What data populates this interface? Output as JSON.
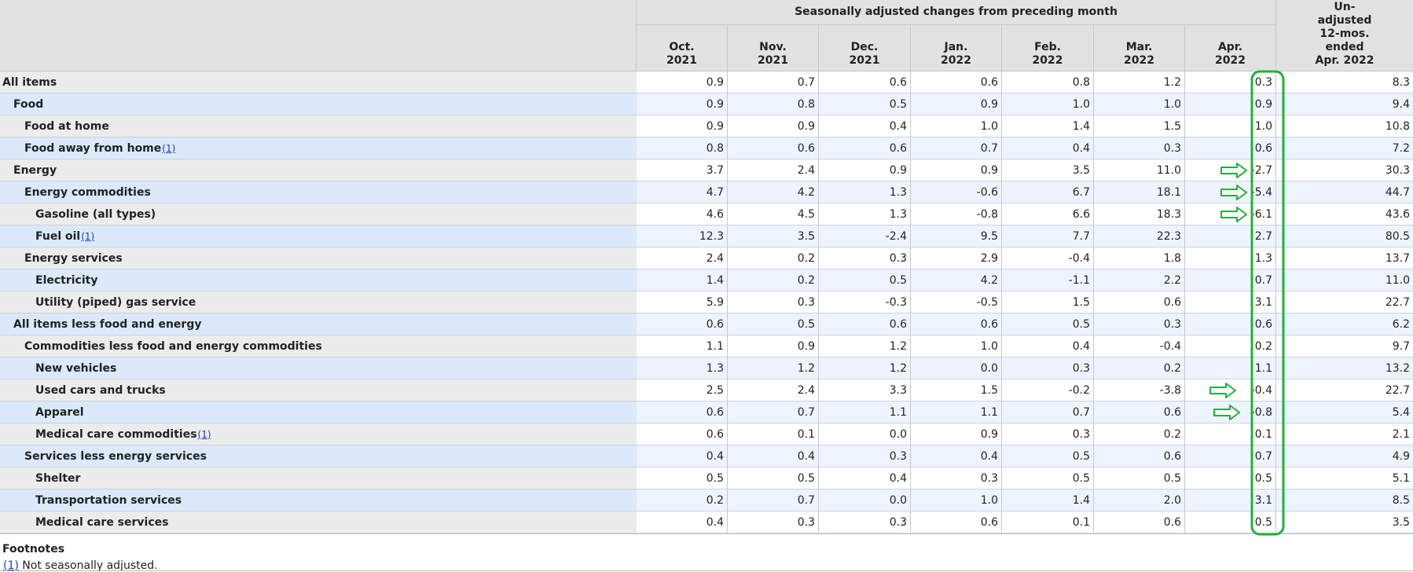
{
  "table": {
    "group_header": "Seasonally adjusted changes from preceding month",
    "columns": [
      [
        "Oct.",
        "2021"
      ],
      [
        "Nov.",
        "2021"
      ],
      [
        "Dec.",
        "2021"
      ],
      [
        "Jan.",
        "2022"
      ],
      [
        "Feb.",
        "2022"
      ],
      [
        "Mar.",
        "2022"
      ],
      [
        "Apr.",
        "2022"
      ],
      [
        "Un-",
        "adjusted",
        "12-mos.",
        "ended",
        "Apr. 2022"
      ]
    ],
    "rows": [
      {
        "label": "All items",
        "values": [
          "0.9",
          "0.7",
          "0.6",
          "0.6",
          "0.8",
          "1.2",
          "0.3",
          "8.3"
        ]
      },
      {
        "label": "Food",
        "values": [
          "0.9",
          "0.8",
          "0.5",
          "0.9",
          "1.0",
          "1.0",
          "0.9",
          "9.4"
        ]
      },
      {
        "label": "Food at home",
        "values": [
          "0.9",
          "0.9",
          "0.4",
          "1.0",
          "1.4",
          "1.5",
          "1.0",
          "10.8"
        ]
      },
      {
        "label": "Food away from home",
        "note": "(1)",
        "values": [
          "0.8",
          "0.6",
          "0.6",
          "0.7",
          "0.4",
          "0.3",
          "0.6",
          "7.2"
        ]
      },
      {
        "label": "Energy",
        "values": [
          "3.7",
          "2.4",
          "0.9",
          "0.9",
          "3.5",
          "11.0",
          "-2.7",
          "30.3"
        ]
      },
      {
        "label": "Energy commodities",
        "values": [
          "4.7",
          "4.2",
          "1.3",
          "-0.6",
          "6.7",
          "18.1",
          "-5.4",
          "44.7"
        ]
      },
      {
        "label": "Gasoline (all types)",
        "values": [
          "4.6",
          "4.5",
          "1.3",
          "-0.8",
          "6.6",
          "18.3",
          "-6.1",
          "43.6"
        ]
      },
      {
        "label": "Fuel oil",
        "note": "(1)",
        "values": [
          "12.3",
          "3.5",
          "-2.4",
          "9.5",
          "7.7",
          "22.3",
          "2.7",
          "80.5"
        ]
      },
      {
        "label": "Energy services",
        "values": [
          "2.4",
          "0.2",
          "0.3",
          "2.9",
          "-0.4",
          "1.8",
          "1.3",
          "13.7"
        ]
      },
      {
        "label": "Electricity",
        "values": [
          "1.4",
          "0.2",
          "0.5",
          "4.2",
          "-1.1",
          "2.2",
          "0.7",
          "11.0"
        ]
      },
      {
        "label": "Utility (piped) gas service",
        "values": [
          "5.9",
          "0.3",
          "-0.3",
          "-0.5",
          "1.5",
          "0.6",
          "3.1",
          "22.7"
        ]
      },
      {
        "label": "All items less food and energy",
        "values": [
          "0.6",
          "0.5",
          "0.6",
          "0.6",
          "0.5",
          "0.3",
          "0.6",
          "6.2"
        ]
      },
      {
        "label": "Commodities less food and energy commodities",
        "values": [
          "1.1",
          "0.9",
          "1.2",
          "1.0",
          "0.4",
          "-0.4",
          "0.2",
          "9.7"
        ]
      },
      {
        "label": "New vehicles",
        "values": [
          "1.3",
          "1.2",
          "1.2",
          "0.0",
          "0.3",
          "0.2",
          "1.1",
          "13.2"
        ]
      },
      {
        "label": "Used cars and trucks",
        "values": [
          "2.5",
          "2.4",
          "3.3",
          "1.5",
          "-0.2",
          "-3.8",
          "-0.4",
          "22.7"
        ]
      },
      {
        "label": "Apparel",
        "values": [
          "0.6",
          "0.7",
          "1.1",
          "1.1",
          "0.7",
          "0.6",
          "-0.8",
          "5.4"
        ]
      },
      {
        "label": "Medical care commodities",
        "note": "(1)",
        "values": [
          "0.6",
          "0.1",
          "0.0",
          "0.9",
          "0.3",
          "0.2",
          "0.1",
          "2.1"
        ]
      },
      {
        "label": "Services less energy services",
        "values": [
          "0.4",
          "0.4",
          "0.3",
          "0.4",
          "0.5",
          "0.6",
          "0.7",
          "4.9"
        ]
      },
      {
        "label": "Shelter",
        "values": [
          "0.5",
          "0.5",
          "0.4",
          "0.3",
          "0.5",
          "0.5",
          "0.5",
          "5.1"
        ]
      },
      {
        "label": "Transportation services",
        "values": [
          "0.2",
          "0.7",
          "0.0",
          "1.0",
          "1.4",
          "2.0",
          "3.1",
          "8.5"
        ]
      },
      {
        "label": "Medical care services",
        "values": [
          "0.4",
          "0.3",
          "0.3",
          "0.6",
          "0.1",
          "0.6",
          "0.5",
          "3.5"
        ]
      }
    ]
  },
  "footnotes": {
    "title": "Footnotes",
    "items": [
      {
        "ref": "(1)",
        "text": "Not seasonally adjusted."
      }
    ]
  }
}
